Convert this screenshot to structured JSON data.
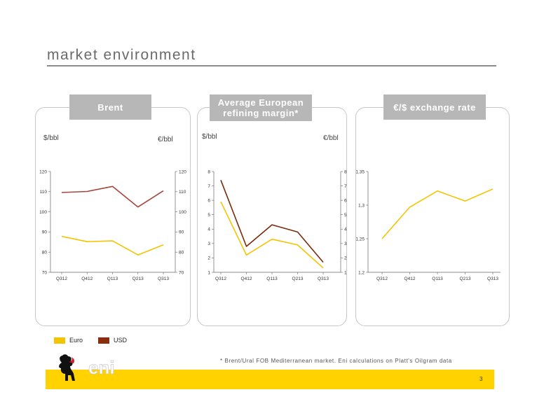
{
  "page": {
    "title": "market environment",
    "page_number": "3"
  },
  "footnote": "*   Brent/Ural FOB Mediterranean market. Eni calculations on Platt's Oilgram data",
  "logo": {
    "text": "eni"
  },
  "legend": [
    {
      "label": "Euro",
      "color": "#f5c400"
    },
    {
      "label": "USD",
      "color": "#8b2d0f"
    }
  ],
  "panels": [
    {
      "title": "Brent",
      "unit_left": "$/bbl",
      "unit_right": "€/bbl"
    },
    {
      "title": "Average European refining margin*",
      "unit_left": "$/bbl",
      "unit_right": "€/bbl"
    },
    {
      "title": "€/$ exchange rate"
    }
  ],
  "colors": {
    "usd": "#a8453a",
    "usd_dark": "#7a2a0a",
    "euro": "#f5c400"
  },
  "chart_data": [
    {
      "type": "line",
      "title": "Brent",
      "categories": [
        "Q312",
        "Q412",
        "Q113",
        "Q213",
        "Q313"
      ],
      "series": [
        {
          "name": "USD",
          "values": [
            109.6,
            110.1,
            112.6,
            102.4,
            110.4
          ]
        },
        {
          "name": "Euro",
          "values": [
            87.8,
            85.2,
            85.6,
            78.6,
            83.6
          ]
        }
      ],
      "ylim": [
        70,
        120
      ],
      "yticks": [
        "70",
        "80",
        "90",
        "100",
        "110",
        "120"
      ],
      "ylabel": "$/bbl",
      "ylabel_right": "€/bbl"
    },
    {
      "type": "line",
      "title": "Average European refining margin*",
      "categories": [
        "Q312",
        "Q412",
        "Q113",
        "Q213",
        "Q313"
      ],
      "series": [
        {
          "name": "USD",
          "values": [
            7.4,
            2.8,
            4.3,
            3.8,
            1.7
          ]
        },
        {
          "name": "Euro",
          "values": [
            5.9,
            2.2,
            3.3,
            2.9,
            1.3
          ]
        }
      ],
      "ylim": [
        1,
        8
      ],
      "yticks": [
        "1",
        "2",
        "3",
        "4",
        "5",
        "6",
        "7",
        "8"
      ],
      "ylabel": "$/bbl",
      "ylabel_right": "€/bbl"
    },
    {
      "type": "line",
      "title": "€/$ exchange rate",
      "categories": [
        "Q312",
        "Q412",
        "Q113",
        "Q213",
        "Q313"
      ],
      "series": [
        {
          "name": "Euro",
          "values": [
            1.25,
            1.297,
            1.321,
            1.306,
            1.324
          ]
        }
      ],
      "ylim": [
        1.2,
        1.35
      ],
      "yticks": [
        "1,2",
        "1,25",
        "1,3",
        "1,35"
      ]
    }
  ]
}
